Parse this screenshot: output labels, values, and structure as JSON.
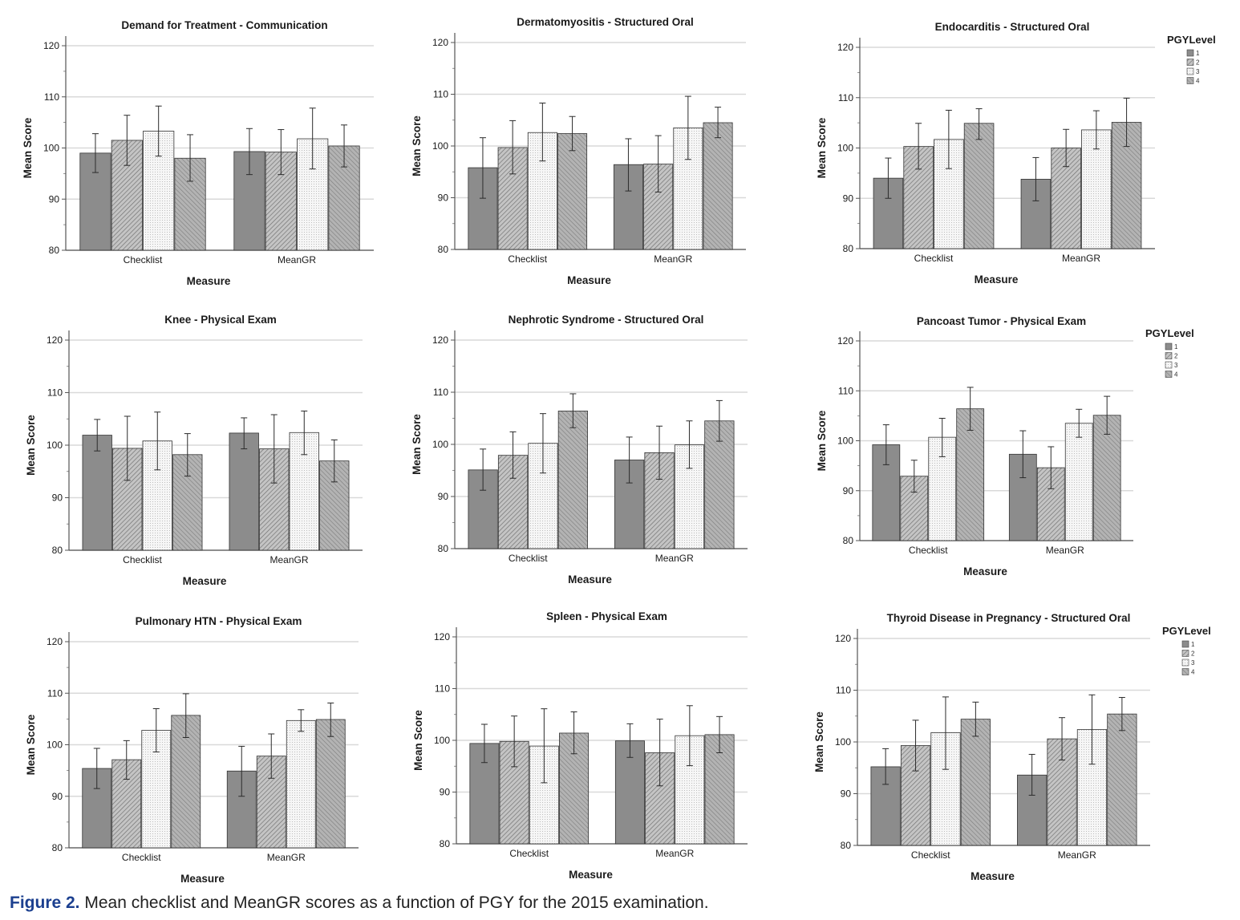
{
  "figure": {
    "label": "Figure 2.",
    "caption": "Mean checklist and MeanGR scores as a function of PGY for the 2015 examination."
  },
  "legend": {
    "title": "PGYLevel",
    "labels": [
      "1",
      "2",
      "3",
      "4"
    ]
  },
  "style": {
    "bar_colors": [
      "#8c8c8c",
      "#b4b4b4",
      "#f4f4f4",
      "#a8a8a8"
    ],
    "border_color": "#333333",
    "grid_color": "#d9d9d9"
  },
  "chart_data": [
    {
      "type": "bar",
      "title": "Demand for Treatment - Communication",
      "xlabel": "Measure",
      "ylabel": "Mean Score",
      "categories": [
        "Checklist",
        "MeanGR"
      ],
      "yticks": [
        "80",
        "90",
        "100",
        "110",
        "120"
      ],
      "ylim": [
        80,
        120
      ],
      "grid": true,
      "legend": "none",
      "series": [
        {
          "name": "1",
          "values": [
            99.0,
            99.3
          ],
          "errors": [
            [
              95.2,
              102.8
            ],
            [
              94.8,
              103.8
            ]
          ]
        },
        {
          "name": "2",
          "values": [
            101.5,
            99.2
          ],
          "errors": [
            [
              96.6,
              106.4
            ],
            [
              94.8,
              103.6
            ]
          ]
        },
        {
          "name": "3",
          "values": [
            103.3,
            101.8
          ],
          "errors": [
            [
              98.4,
              108.2
            ],
            [
              95.9,
              107.8
            ]
          ]
        },
        {
          "name": "4",
          "values": [
            98.0,
            100.4
          ],
          "errors": [
            [
              93.5,
              102.6
            ],
            [
              96.3,
              104.5
            ]
          ]
        }
      ]
    },
    {
      "type": "bar",
      "title": "Dermatomyositis - Structured Oral",
      "xlabel": "Measure",
      "ylabel": "Mean Score",
      "categories": [
        "Checklist",
        "MeanGR"
      ],
      "yticks": [
        "80",
        "90",
        "100",
        "110",
        "120"
      ],
      "ylim": [
        80,
        120
      ],
      "grid": true,
      "legend": "none",
      "series": [
        {
          "name": "1",
          "values": [
            95.8,
            96.4
          ],
          "errors": [
            [
              89.9,
              101.6
            ],
            [
              91.3,
              101.4
            ]
          ]
        },
        {
          "name": "2",
          "values": [
            99.7,
            96.5
          ],
          "errors": [
            [
              94.6,
              104.9
            ],
            [
              91.1,
              102.0
            ]
          ]
        },
        {
          "name": "3",
          "values": [
            102.6,
            103.5
          ],
          "errors": [
            [
              97.1,
              108.3
            ],
            [
              97.4,
              109.6
            ]
          ]
        },
        {
          "name": "4",
          "values": [
            102.4,
            104.5
          ],
          "errors": [
            [
              99.1,
              105.7
            ],
            [
              101.6,
              107.5
            ]
          ]
        }
      ]
    },
    {
      "type": "bar",
      "title": "Endocarditis - Structured Oral",
      "xlabel": "Measure",
      "ylabel": "Mean Score",
      "categories": [
        "Checklist",
        "MeanGR"
      ],
      "yticks": [
        "80",
        "90",
        "100",
        "110",
        "120"
      ],
      "ylim": [
        80,
        120
      ],
      "grid": true,
      "legend": "top-right",
      "series": [
        {
          "name": "1",
          "values": [
            94.0,
            93.8
          ],
          "errors": [
            [
              90.0,
              98.0
            ],
            [
              89.5,
              98.1
            ]
          ]
        },
        {
          "name": "2",
          "values": [
            100.3,
            100.0
          ],
          "errors": [
            [
              95.8,
              104.9
            ],
            [
              96.3,
              103.7
            ]
          ]
        },
        {
          "name": "3",
          "values": [
            101.7,
            103.6
          ],
          "errors": [
            [
              95.9,
              107.5
            ],
            [
              99.8,
              107.4
            ]
          ]
        },
        {
          "name": "4",
          "values": [
            104.9,
            105.1
          ],
          "errors": [
            [
              101.7,
              107.8
            ],
            [
              100.3,
              109.9
            ]
          ]
        }
      ]
    },
    {
      "type": "bar",
      "title": "Knee - Physical Exam",
      "xlabel": "Measure",
      "ylabel": "Mean Score",
      "categories": [
        "Checklist",
        "MeanGR"
      ],
      "yticks": [
        "80",
        "90",
        "100",
        "110",
        "120"
      ],
      "ylim": [
        80,
        120
      ],
      "grid": true,
      "legend": "none",
      "series": [
        {
          "name": "1",
          "values": [
            101.9,
            102.3
          ],
          "errors": [
            [
              98.9,
              104.9
            ],
            [
              99.3,
              105.2
            ]
          ]
        },
        {
          "name": "2",
          "values": [
            99.4,
            99.3
          ],
          "errors": [
            [
              93.3,
              105.5
            ],
            [
              92.8,
              105.8
            ]
          ]
        },
        {
          "name": "3",
          "values": [
            100.8,
            102.4
          ],
          "errors": [
            [
              95.3,
              106.3
            ],
            [
              98.2,
              106.5
            ]
          ]
        },
        {
          "name": "4",
          "values": [
            98.2,
            97.0
          ],
          "errors": [
            [
              94.1,
              102.2
            ],
            [
              93.0,
              101.0
            ]
          ]
        }
      ]
    },
    {
      "type": "bar",
      "title": "Nephrotic Syndrome - Structured Oral",
      "xlabel": "Measure",
      "ylabel": "Mean Score",
      "categories": [
        "Checklist",
        "MeanGR"
      ],
      "yticks": [
        "80",
        "90",
        "100",
        "110",
        "120"
      ],
      "ylim": [
        80,
        120
      ],
      "grid": true,
      "legend": "none",
      "series": [
        {
          "name": "1",
          "values": [
            95.1,
            97.0
          ],
          "errors": [
            [
              91.2,
              99.1
            ],
            [
              92.6,
              101.4
            ]
          ]
        },
        {
          "name": "2",
          "values": [
            97.9,
            98.4
          ],
          "errors": [
            [
              93.5,
              102.4
            ],
            [
              93.3,
              103.5
            ]
          ]
        },
        {
          "name": "3",
          "values": [
            100.2,
            99.9
          ],
          "errors": [
            [
              94.5,
              105.9
            ],
            [
              95.4,
              104.5
            ]
          ]
        },
        {
          "name": "4",
          "values": [
            106.4,
            104.5
          ],
          "errors": [
            [
              103.2,
              109.7
            ],
            [
              100.6,
              108.4
            ]
          ]
        }
      ]
    },
    {
      "type": "bar",
      "title": "Pancoast Tumor - Physical Exam",
      "xlabel": "Measure",
      "ylabel": "Mean Score",
      "categories": [
        "Checklist",
        "MeanGR"
      ],
      "yticks": [
        "80",
        "90",
        "100",
        "110",
        "120"
      ],
      "ylim": [
        80,
        120
      ],
      "grid": true,
      "legend": "top-right",
      "series": [
        {
          "name": "1",
          "values": [
            99.2,
            97.3
          ],
          "errors": [
            [
              95.2,
              103.2
            ],
            [
              92.6,
              102.0
            ]
          ]
        },
        {
          "name": "2",
          "values": [
            92.9,
            94.6
          ],
          "errors": [
            [
              89.7,
              96.1
            ],
            [
              90.4,
              98.8
            ]
          ]
        },
        {
          "name": "3",
          "values": [
            100.7,
            103.5
          ],
          "errors": [
            [
              96.8,
              104.5
            ],
            [
              100.7,
              106.3
            ]
          ]
        },
        {
          "name": "4",
          "values": [
            106.4,
            105.1
          ],
          "errors": [
            [
              102.1,
              110.7
            ],
            [
              101.3,
              108.9
            ]
          ]
        }
      ]
    },
    {
      "type": "bar",
      "title": "Pulmonary HTN - Physical Exam",
      "xlabel": "Measure",
      "ylabel": "Mean Score",
      "categories": [
        "Checklist",
        "MeanGR"
      ],
      "yticks": [
        "80",
        "90",
        "100",
        "110",
        "120"
      ],
      "ylim": [
        80,
        120
      ],
      "grid": true,
      "legend": "none",
      "series": [
        {
          "name": "1",
          "values": [
            95.4,
            94.9
          ],
          "errors": [
            [
              91.5,
              99.3
            ],
            [
              90.0,
              99.7
            ]
          ]
        },
        {
          "name": "2",
          "values": [
            97.1,
            97.8
          ],
          "errors": [
            [
              93.3,
              100.8
            ],
            [
              93.5,
              102.1
            ]
          ]
        },
        {
          "name": "3",
          "values": [
            102.8,
            104.7
          ],
          "errors": [
            [
              98.6,
              107.0
            ],
            [
              102.6,
              106.8
            ]
          ]
        },
        {
          "name": "4",
          "values": [
            105.7,
            104.9
          ],
          "errors": [
            [
              101.4,
              109.9
            ],
            [
              101.6,
              108.1
            ]
          ]
        }
      ]
    },
    {
      "type": "bar",
      "title": "Spleen - Physical Exam",
      "xlabel": "Measure",
      "ylabel": "Mean Score",
      "categories": [
        "Checklist",
        "MeanGR"
      ],
      "yticks": [
        "80",
        "90",
        "100",
        "110",
        "120"
      ],
      "ylim": [
        80,
        120
      ],
      "grid": true,
      "legend": "none",
      "series": [
        {
          "name": "1",
          "values": [
            99.4,
            99.9
          ],
          "errors": [
            [
              95.7,
              103.1
            ],
            [
              96.7,
              103.2
            ]
          ]
        },
        {
          "name": "2",
          "values": [
            99.8,
            97.6
          ],
          "errors": [
            [
              94.9,
              104.7
            ],
            [
              91.2,
              104.1
            ]
          ]
        },
        {
          "name": "3",
          "values": [
            98.9,
            100.9
          ],
          "errors": [
            [
              91.8,
              106.1
            ],
            [
              95.1,
              106.7
            ]
          ]
        },
        {
          "name": "4",
          "values": [
            101.4,
            101.1
          ],
          "errors": [
            [
              97.4,
              105.5
            ],
            [
              97.6,
              104.6
            ]
          ]
        }
      ]
    },
    {
      "type": "bar",
      "title": "Thyroid Disease in Pregnancy - Structured Oral",
      "xlabel": "Measure",
      "ylabel": "Mean Score",
      "categories": [
        "Checklist",
        "MeanGR"
      ],
      "yticks": [
        "80",
        "90",
        "100",
        "110",
        "120"
      ],
      "ylim": [
        80,
        120
      ],
      "grid": true,
      "legend": "top-right",
      "series": [
        {
          "name": "1",
          "values": [
            95.2,
            93.6
          ],
          "errors": [
            [
              91.8,
              98.7
            ],
            [
              89.7,
              97.6
            ]
          ]
        },
        {
          "name": "2",
          "values": [
            99.3,
            100.6
          ],
          "errors": [
            [
              94.4,
              104.2
            ],
            [
              96.5,
              104.7
            ]
          ]
        },
        {
          "name": "3",
          "values": [
            101.8,
            102.4
          ],
          "errors": [
            [
              94.7,
              108.7
            ],
            [
              95.7,
              109.1
            ]
          ]
        },
        {
          "name": "4",
          "values": [
            104.4,
            105.4
          ],
          "errors": [
            [
              101.1,
              107.7
            ],
            [
              102.2,
              108.6
            ]
          ]
        }
      ]
    }
  ]
}
